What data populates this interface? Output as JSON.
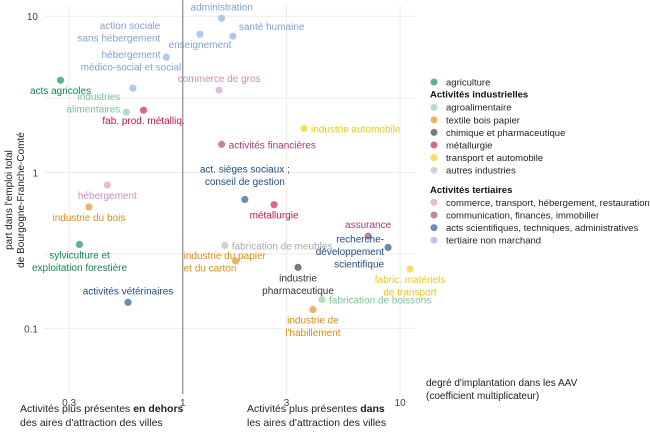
{
  "chart_data": {
    "type": "scatter",
    "x_scale": "log",
    "y_scale": "log",
    "xlim": [
      0.23,
      11.7
    ],
    "ylim": [
      0.038,
      11.8
    ],
    "x_ticks": [
      {
        "v": 0.3,
        "label": "0.3"
      },
      {
        "v": 1,
        "label": "1"
      },
      {
        "v": 3,
        "label": "3"
      },
      {
        "v": 10,
        "label": "10"
      }
    ],
    "y_ticks": [
      {
        "v": 0.1,
        "label": "0.1"
      },
      {
        "v": 1,
        "label": "1"
      },
      {
        "v": 10,
        "label": "10"
      }
    ],
    "ylabel_lines": [
      "part dans l'emploi total",
      "de Bourgogne-Franche-Comté"
    ],
    "xlabel_lines": [
      "degré d'implantation dans les AAV",
      "(coefficient multiplicateur)"
    ],
    "reference_line_x": 1,
    "grid": true,
    "categories": {
      "agriculture": {
        "label": "agriculture",
        "color": "#5fb386",
        "text": "#13864a"
      },
      "agro": {
        "label": "agroalimentaire",
        "color": "#b5dfc2",
        "text": "#7cc296"
      },
      "textile": {
        "label": "textile bois papier",
        "color": "#eab466",
        "text": "#e08c0c"
      },
      "chimie": {
        "label": "chimique et pharmaceutique",
        "color": "#777c84",
        "text": "#333"
      },
      "metal": {
        "label": "métallurgie",
        "color": "#d66a80",
        "text": "#c4163c"
      },
      "transport": {
        "label": "transport et automobile",
        "color": "#f7df5e",
        "text": "#ecc90c"
      },
      "autres": {
        "label": "autres industries",
        "color": "#d2d2d2",
        "text": "#aaa"
      },
      "commerce": {
        "label": "commerce, transport, hébergement, restauration",
        "color": "#e6bcd6",
        "text": "#d48ab8"
      },
      "communication": {
        "label": "communication, finances, immobilier",
        "color": "#c084a8",
        "text": "#a23a72"
      },
      "scient": {
        "label": "acts scientifiques, techniques, administratives",
        "color": "#6c8cb8",
        "text": "#1f4b86"
      },
      "nonmarchand": {
        "label": "tertiaire non marchand",
        "color": "#b2c9ec",
        "text": "#7fa2d8"
      }
    },
    "legend": {
      "placement": "right",
      "items": [
        {
          "cat": "agriculture"
        },
        {
          "heading": "Activités industrielles"
        },
        {
          "cat": "agro"
        },
        {
          "cat": "textile"
        },
        {
          "cat": "chimie"
        },
        {
          "cat": "metal"
        },
        {
          "cat": "transport"
        },
        {
          "cat": "autres"
        },
        {
          "heading": "Activités tertiaires"
        },
        {
          "cat": "commerce"
        },
        {
          "cat": "communication"
        },
        {
          "cat": "scient"
        },
        {
          "cat": "nonmarchand"
        }
      ]
    },
    "points": [
      {
        "name": "administration",
        "lines": [
          "administration"
        ],
        "x": 1.51,
        "y": 9.7,
        "cat": "nonmarchand",
        "anchor": "above"
      },
      {
        "name": "action sociale sans hébergement",
        "lines": [
          "action sociale",
          "sans hébergement"
        ],
        "x": 0.84,
        "y": 5.46,
        "cat": "nonmarchand",
        "anchor": "above-left"
      },
      {
        "name": "enseignement",
        "lines": [
          "enseignement"
        ],
        "x": 1.2,
        "y": 7.67,
        "cat": "nonmarchand",
        "anchor": "below"
      },
      {
        "name": "santé humaine",
        "lines": [
          "santé humaine"
        ],
        "x": 1.7,
        "y": 7.45,
        "cat": "nonmarchand",
        "anchor": "above-right"
      },
      {
        "name": "hébergement médico-social et social",
        "lines": [
          "hébergement",
          "médico-social et social"
        ],
        "x": 0.59,
        "y": 3.46,
        "cat": "nonmarchand",
        "anchor": "above-mid"
      },
      {
        "name": "acts agricoles",
        "lines": [
          "acts agricoles"
        ],
        "x": 0.274,
        "y": 3.89,
        "cat": "agriculture",
        "anchor": "below"
      },
      {
        "name": "industries alimentaires",
        "lines": [
          "industries",
          "alimentaires"
        ],
        "x": 0.55,
        "y": 2.43,
        "cat": "agro",
        "anchor": "left2"
      },
      {
        "name": "fab. prod. métalliq.",
        "lines": [
          "fab. prod. métalliq."
        ],
        "x": 0.66,
        "y": 2.5,
        "cat": "metal",
        "anchor": "below"
      },
      {
        "name": "commerce de gros",
        "lines": [
          "commerce de gros"
        ],
        "x": 1.47,
        "y": 3.36,
        "cat": "commerce",
        "anchor": "above"
      },
      {
        "name": "industrie automobile",
        "lines": [
          "industrie automobile"
        ],
        "x": 3.61,
        "y": 1.91,
        "cat": "transport",
        "anchor": "right"
      },
      {
        "name": "activités financières",
        "lines": [
          "activités financières"
        ],
        "x": 1.51,
        "y": 1.51,
        "cat": "communication",
        "anchor": "right"
      },
      {
        "name": "hébergement",
        "lines": [
          "hébergement"
        ],
        "x": 0.45,
        "y": 0.83,
        "cat": "commerce",
        "anchor": "below"
      },
      {
        "name": "act. sièges sociaux ; conseil de gestion",
        "lines": [
          "act. sièges sociaux ;",
          "conseil de gestion"
        ],
        "x": 1.93,
        "y": 0.67,
        "cat": "scient",
        "anchor": "above2"
      },
      {
        "name": "métallurgie",
        "lines": [
          "métallurgie"
        ],
        "x": 2.63,
        "y": 0.62,
        "cat": "metal",
        "anchor": "below"
      },
      {
        "name": "industrie du bois",
        "lines": [
          "industrie du bois"
        ],
        "x": 0.37,
        "y": 0.6,
        "cat": "textile",
        "anchor": "below"
      },
      {
        "name": "sylviculture et exploitation forestière",
        "lines": [
          "sylviculture et",
          "exploitation forestière"
        ],
        "x": 0.335,
        "y": 0.345,
        "cat": "agriculture",
        "anchor": "below-left"
      },
      {
        "name": "fabrication de meubles",
        "lines": [
          "fabrication de meubles"
        ],
        "x": 1.56,
        "y": 0.34,
        "cat": "autres",
        "anchor": "right"
      },
      {
        "name": "assurance",
        "lines": [
          "assurance"
        ],
        "x": 7.12,
        "y": 0.39,
        "cat": "communication",
        "anchor": "above"
      },
      {
        "name": "recherche-développement scientifique",
        "lines": [
          "recherche-",
          "développement",
          "scientifique"
        ],
        "x": 8.8,
        "y": 0.33,
        "cat": "scient",
        "anchor": "left3"
      },
      {
        "name": "industrie du papier et du carton",
        "lines": [
          "industrie du papier",
          "et du carton"
        ],
        "x": 1.75,
        "y": 0.27,
        "cat": "textile",
        "anchor": "left-papier"
      },
      {
        "name": "industrie pharmaceutique",
        "lines": [
          "industrie",
          "pharmaceutique"
        ],
        "x": 3.39,
        "y": 0.246,
        "cat": "chimie",
        "anchor": "below2"
      },
      {
        "name": "fabric. matériels de transport",
        "lines": [
          "fabric. matériels",
          "de transport"
        ],
        "x": 11.1,
        "y": 0.24,
        "cat": "transport",
        "anchor": "below2"
      },
      {
        "name": "fabrication de boissons",
        "lines": [
          "fabrication de boissons"
        ],
        "x": 4.37,
        "y": 0.153,
        "cat": "agro",
        "anchor": "right"
      },
      {
        "name": "industrie de l'habillement",
        "lines": [
          "industrie de",
          "l'habillement"
        ],
        "x": 3.97,
        "y": 0.132,
        "cat": "textile",
        "anchor": "below2"
      },
      {
        "name": "activités vétérinaires",
        "lines": [
          "activités vétérinaires"
        ],
        "x": 0.56,
        "y": 0.147,
        "cat": "scient",
        "anchor": "above"
      }
    ]
  },
  "notes": {
    "left_prefix": "Activités plus présentes ",
    "left_bold": "en dehors",
    "left_line2": "des aires d'attraction des villes",
    "right_prefix": "Activités plus présentes ",
    "right_bold": "dans",
    "right_line2": "les aires d'attraction des villes"
  }
}
